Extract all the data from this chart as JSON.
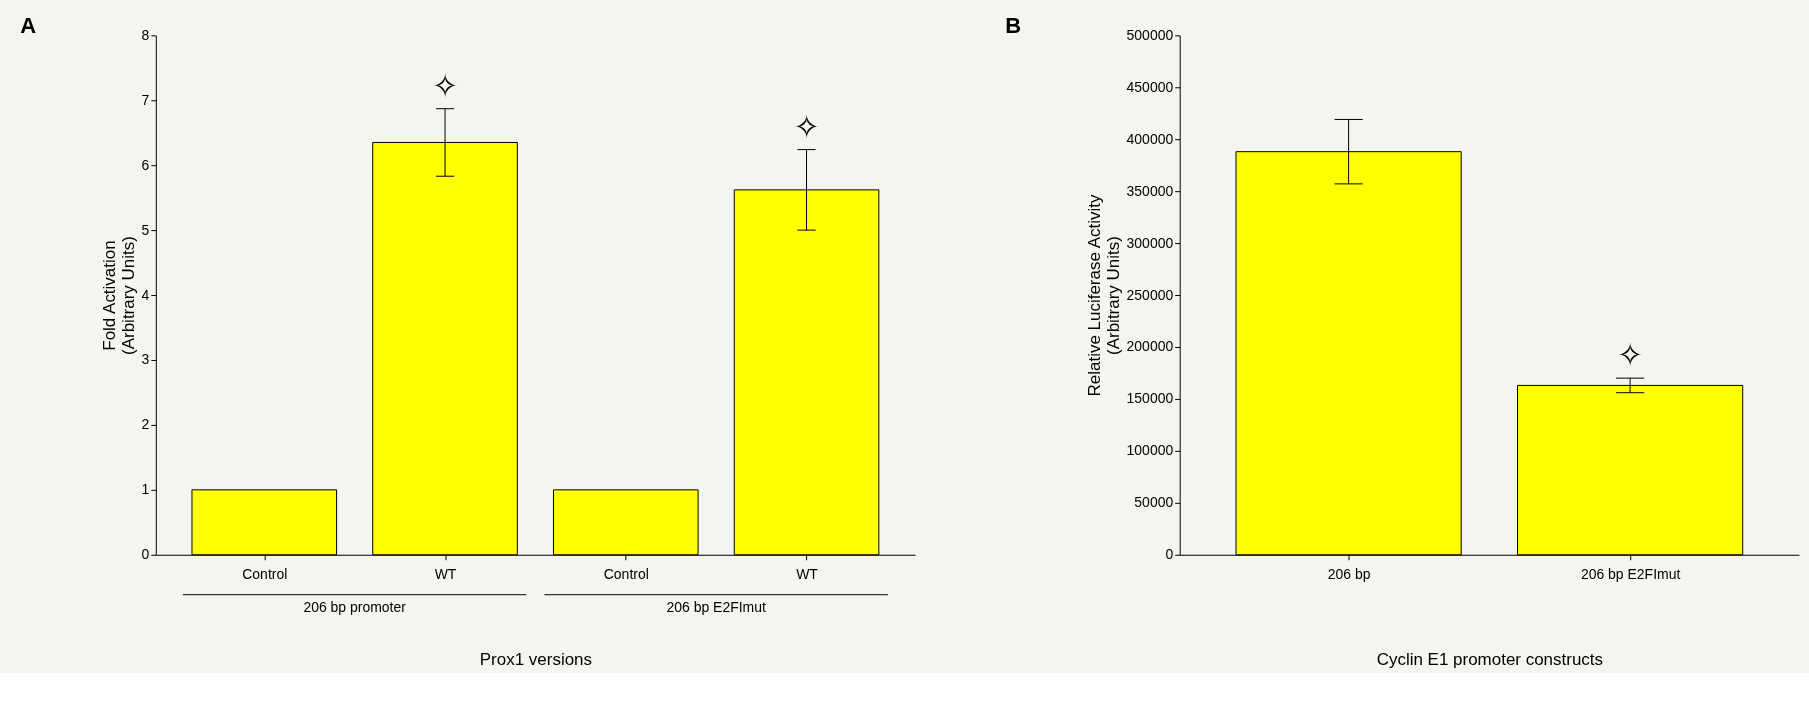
{
  "chart_data": [
    {
      "type": "bar",
      "title": "A",
      "categories": [
        "Control",
        "WT",
        "Control",
        "WT"
      ],
      "values": [
        1,
        6.35,
        1,
        5.62
      ],
      "errors": [
        null,
        0.52,
        null,
        0.62
      ],
      "color": "#ffff00",
      "ylim": [
        0,
        8
      ],
      "yticks": [
        0,
        1,
        2,
        3,
        4,
        5,
        6,
        7,
        8
      ],
      "xlabel": "Prox1 versions",
      "ylabel": "Fold Activation\n(Arbitrary Units)",
      "grid": false,
      "annotations": [
        "206 bp promoter",
        "206 bp E2FImut",
        "✧",
        "✧"
      ]
    },
    {
      "type": "bar",
      "title": "B",
      "categories": [
        "206 bp",
        "206 bp E2FImut"
      ],
      "values": [
        388000,
        163000
      ],
      "errors": [
        31000,
        7000
      ],
      "color": "#ffff00",
      "ylim": [
        0,
        500000
      ],
      "yticks": [
        0,
        50000,
        100000,
        150000,
        200000,
        250000,
        300000,
        350000,
        400000,
        450000,
        500000
      ],
      "xlabel": "Cyclin E1 promoter constructs",
      "ylabel": "Relative Luciferase Activity\n(Arbitrary Units)",
      "grid": false,
      "annotations": [
        "✧"
      ]
    }
  ]
}
